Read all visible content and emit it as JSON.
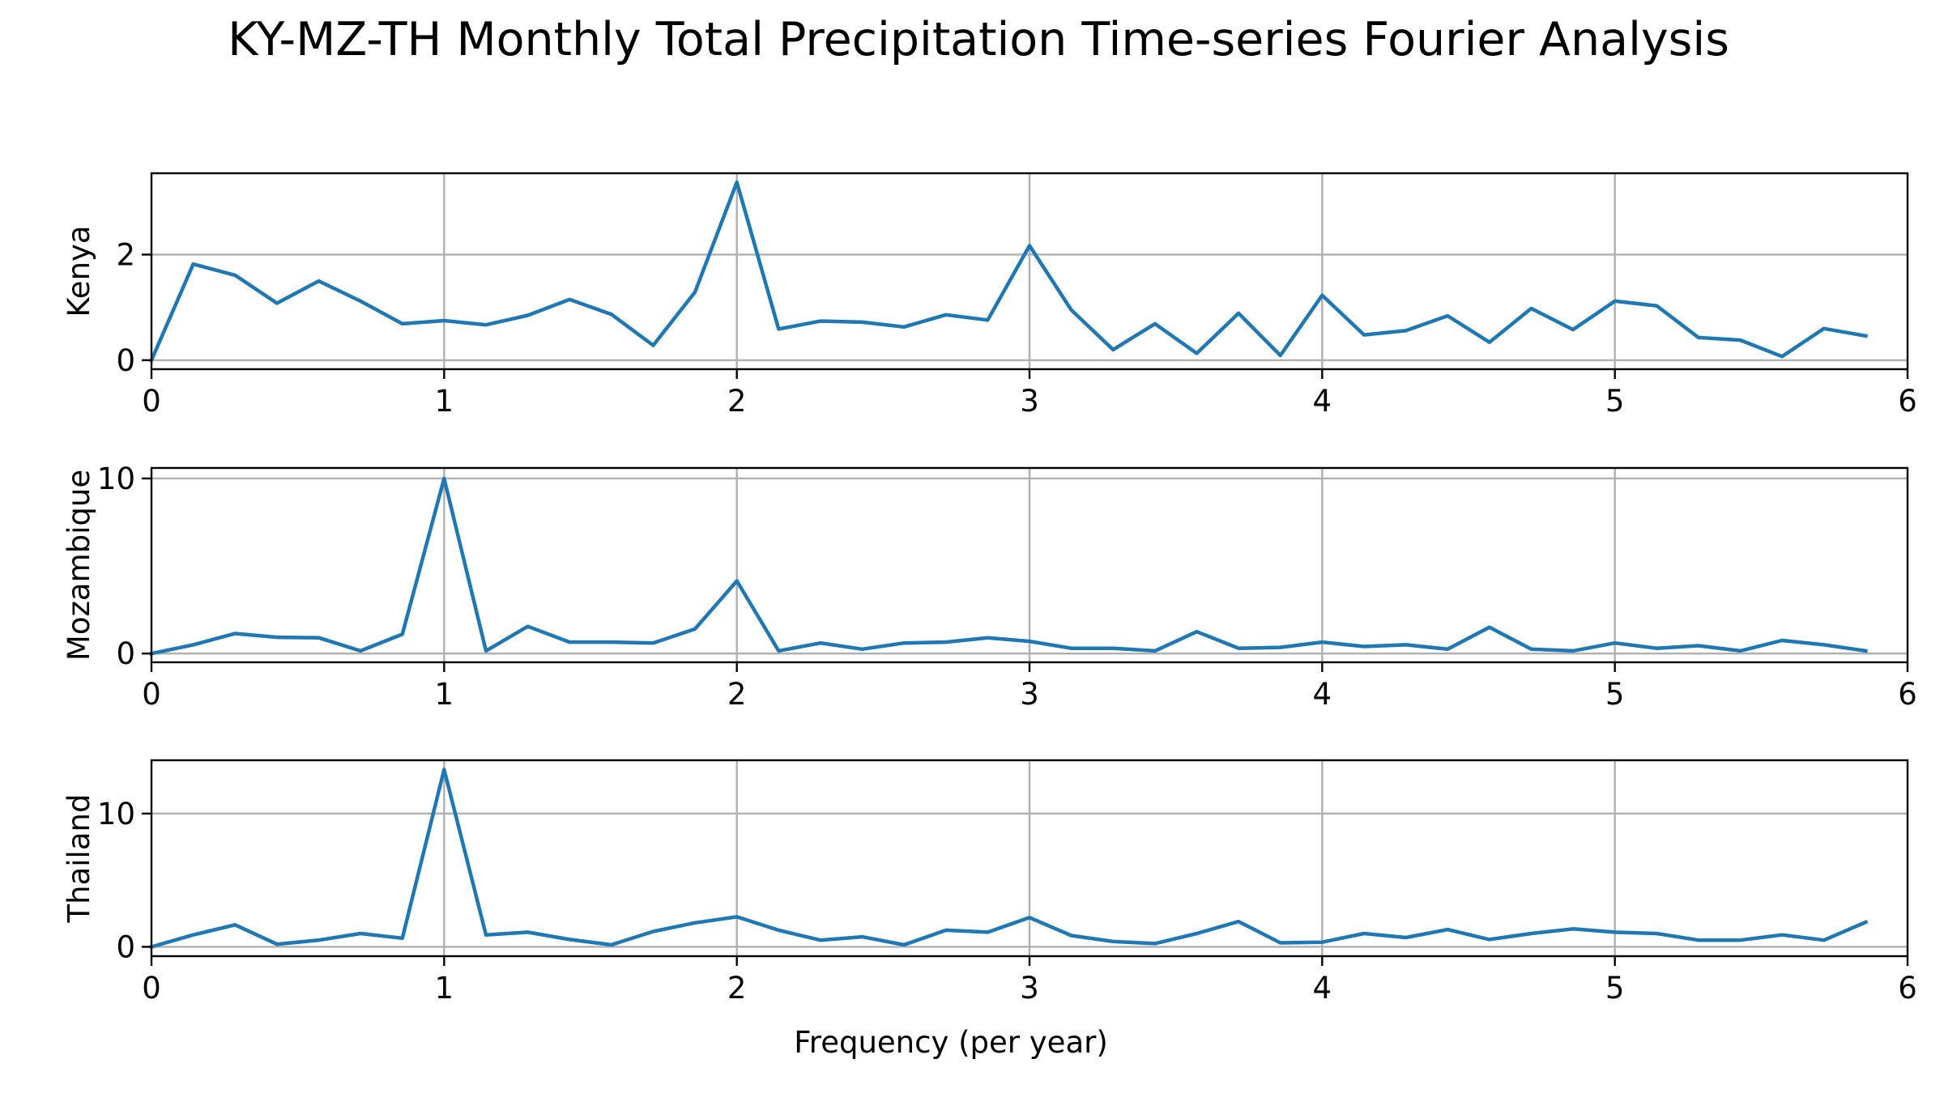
{
  "figure": {
    "title": "KY-MZ-TH Monthly Total Precipitation Time-series Fourier Analysis",
    "xlabel": "Frequency (per year)"
  },
  "colors": {
    "line": "#1f77b4",
    "grid": "#b0b0b0"
  },
  "chart_data": [
    {
      "type": "line",
      "ylabel": "Kenya",
      "grid": true,
      "xlim": [
        0,
        6
      ],
      "ylim": [
        -0.17,
        3.54
      ],
      "xticks": [
        0,
        1,
        2,
        3,
        4,
        5,
        6
      ],
      "yticks": [
        0,
        2
      ],
      "x": [
        0,
        0.1429,
        0.2857,
        0.4286,
        0.5714,
        0.7143,
        0.8571,
        1.0,
        1.1429,
        1.2857,
        1.4286,
        1.5714,
        1.7143,
        1.8571,
        2.0,
        2.1429,
        2.2857,
        2.4286,
        2.5714,
        2.7143,
        2.8571,
        3.0,
        3.1429,
        3.2857,
        3.4286,
        3.5714,
        3.7143,
        3.8571,
        4.0,
        4.1429,
        4.2857,
        4.4286,
        4.5714,
        4.7143,
        4.8571,
        5.0,
        5.1429,
        5.2857,
        5.4286,
        5.5714,
        5.7143,
        5.8571
      ],
      "y": [
        0.0,
        1.82,
        1.61,
        1.08,
        1.5,
        1.12,
        0.69,
        0.75,
        0.67,
        0.85,
        1.15,
        0.87,
        0.28,
        1.29,
        3.37,
        0.59,
        0.74,
        0.72,
        0.63,
        0.86,
        0.76,
        2.17,
        0.95,
        0.2,
        0.69,
        0.13,
        0.89,
        0.09,
        1.23,
        0.48,
        0.56,
        0.84,
        0.34,
        0.98,
        0.58,
        1.12,
        1.03,
        0.43,
        0.38,
        0.07,
        0.6,
        0.46
      ]
    },
    {
      "type": "line",
      "ylabel": "Mozambique",
      "grid": true,
      "xlim": [
        0,
        6
      ],
      "ylim": [
        -0.5,
        10.6
      ],
      "xticks": [
        0,
        1,
        2,
        3,
        4,
        5,
        6
      ],
      "yticks": [
        0,
        10
      ],
      "x": [
        0,
        0.1429,
        0.2857,
        0.4286,
        0.5714,
        0.7143,
        0.8571,
        1.0,
        1.1429,
        1.2857,
        1.4286,
        1.5714,
        1.7143,
        1.8571,
        2.0,
        2.1429,
        2.2857,
        2.4286,
        2.5714,
        2.7143,
        2.8571,
        3.0,
        3.1429,
        3.2857,
        3.4286,
        3.5714,
        3.7143,
        3.8571,
        4.0,
        4.1429,
        4.2857,
        4.4286,
        4.5714,
        4.7143,
        4.8571,
        5.0,
        5.1429,
        5.2857,
        5.4286,
        5.5714,
        5.7143,
        5.8571
      ],
      "y": [
        0.0,
        0.5,
        1.14,
        0.93,
        0.9,
        0.15,
        1.1,
        10.0,
        0.15,
        1.55,
        0.65,
        0.65,
        0.6,
        1.4,
        4.15,
        0.15,
        0.6,
        0.25,
        0.6,
        0.65,
        0.9,
        0.7,
        0.3,
        0.3,
        0.15,
        1.25,
        0.3,
        0.35,
        0.65,
        0.4,
        0.5,
        0.25,
        1.5,
        0.25,
        0.15,
        0.6,
        0.3,
        0.45,
        0.15,
        0.75,
        0.5,
        0.15
      ]
    },
    {
      "type": "line",
      "ylabel": "Thailand",
      "grid": true,
      "xlim": [
        0,
        6
      ],
      "ylim": [
        -0.7,
        14.0
      ],
      "xticks": [
        0,
        1,
        2,
        3,
        4,
        5,
        6
      ],
      "yticks": [
        0,
        10
      ],
      "x": [
        0,
        0.1429,
        0.2857,
        0.4286,
        0.5714,
        0.7143,
        0.8571,
        1.0,
        1.1429,
        1.2857,
        1.4286,
        1.5714,
        1.7143,
        1.8571,
        2.0,
        2.1429,
        2.2857,
        2.4286,
        2.5714,
        2.7143,
        2.8571,
        3.0,
        3.1429,
        3.2857,
        3.4286,
        3.5714,
        3.7143,
        3.8571,
        4.0,
        4.1429,
        4.2857,
        4.4286,
        4.5714,
        4.7143,
        4.8571,
        5.0,
        5.1429,
        5.2857,
        5.4286,
        5.5714,
        5.7143,
        5.8571
      ],
      "y": [
        0.0,
        0.9,
        1.65,
        0.2,
        0.5,
        1.0,
        0.65,
        13.3,
        0.9,
        1.1,
        0.55,
        0.15,
        1.15,
        1.8,
        2.25,
        1.25,
        0.5,
        0.75,
        0.15,
        1.25,
        1.1,
        2.2,
        0.85,
        0.4,
        0.25,
        1.0,
        1.9,
        0.3,
        0.35,
        1.0,
        0.7,
        1.3,
        0.55,
        1.0,
        1.35,
        1.1,
        1.0,
        0.5,
        0.5,
        0.9,
        0.5,
        1.85
      ]
    }
  ]
}
